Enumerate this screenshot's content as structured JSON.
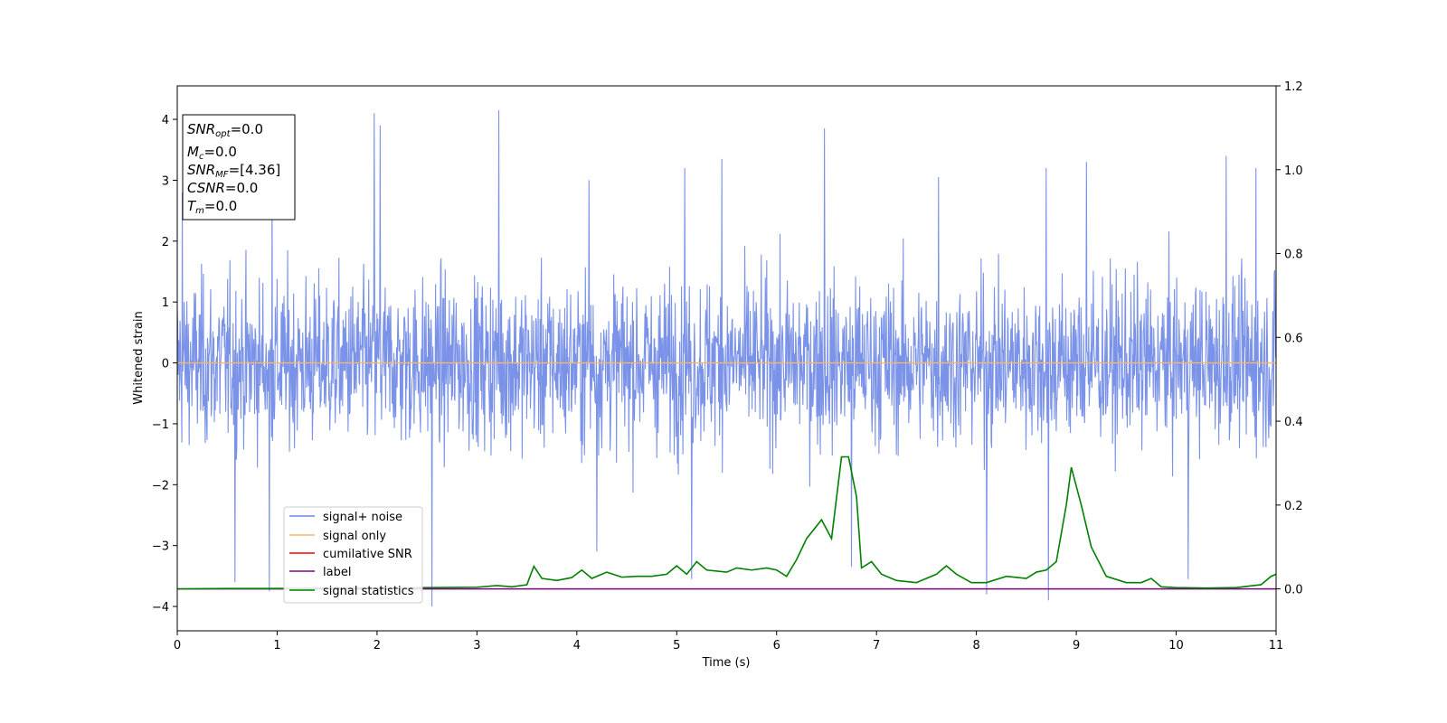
{
  "chart_data": {
    "type": "line",
    "xlabel": "Time (s)",
    "ylabel": "Whitened strain",
    "xlim": [
      0,
      11
    ],
    "ylim": [
      -4.4,
      4.55
    ],
    "y2lim": [
      -0.1,
      1.2
    ],
    "x_ticks": [
      "0",
      "1",
      "2",
      "3",
      "4",
      "5",
      "6",
      "7",
      "8",
      "9",
      "10",
      "11"
    ],
    "y_ticks": [
      "4",
      "3",
      "2",
      "1",
      "0",
      "−1",
      "−2",
      "−3",
      "−4"
    ],
    "y2_ticks": [
      "1.2",
      "1.0",
      "0.8",
      "0.6",
      "0.4",
      "0.2",
      "0.0"
    ],
    "legend_position": "lower-left",
    "info_box": {
      "snr_opt": {
        "main": "SNR",
        "sub": "opt",
        "value": "=0.0"
      },
      "mc": {
        "main": "M",
        "sub": "c",
        "value": "=0.0"
      },
      "snr_mf": {
        "main": "SNR",
        "sub": "MF",
        "value": "=[4.36]"
      },
      "csnr": {
        "main": "CSNR",
        "value": "=0.0"
      },
      "tm": {
        "main": "T",
        "sub": "m",
        "value": "=0.0"
      }
    },
    "series": [
      {
        "name": "signal+ noise",
        "color": "#6b86e5",
        "axis": "left",
        "style": "dense noise, amplitude approx. ±2.5 with spikes to ±4.2",
        "spikes": [
          [
            0.05,
            2.8
          ],
          [
            0.95,
            3.0
          ],
          [
            1.97,
            4.1
          ],
          [
            2.03,
            3.9
          ],
          [
            3.22,
            4.15
          ],
          [
            4.12,
            3.0
          ],
          [
            5.08,
            3.2
          ],
          [
            5.45,
            3.35
          ],
          [
            6.48,
            3.85
          ],
          [
            7.62,
            3.05
          ],
          [
            8.7,
            3.2
          ],
          [
            9.1,
            3.3
          ],
          [
            10.5,
            3.4
          ],
          [
            10.8,
            3.2
          ],
          [
            0.58,
            -3.6
          ],
          [
            0.92,
            -3.75
          ],
          [
            2.55,
            -4.0
          ],
          [
            4.2,
            -3.1
          ],
          [
            5.15,
            -3.55
          ],
          [
            6.75,
            -3.35
          ],
          [
            8.1,
            -3.8
          ],
          [
            8.72,
            -3.9
          ],
          [
            10.12,
            -3.55
          ]
        ]
      },
      {
        "name": "signal only",
        "color": "#f5b86a",
        "axis": "left",
        "points": [
          [
            0,
            0
          ],
          [
            11,
            0
          ]
        ]
      },
      {
        "name": "cumilative SNR",
        "color": "#ff0000",
        "axis": "left",
        "points": []
      },
      {
        "name": "label",
        "color": "#800080",
        "axis": "right",
        "points": [
          [
            0,
            0.0
          ],
          [
            11,
            0.0
          ]
        ]
      },
      {
        "name": "signal statistics",
        "color": "#008000",
        "axis": "right",
        "points": [
          [
            0,
            0.0
          ],
          [
            0.5,
            0.001
          ],
          [
            1,
            0.001
          ],
          [
            1.5,
            0.002
          ],
          [
            2,
            0.002
          ],
          [
            2.5,
            0.003
          ],
          [
            3,
            0.004
          ],
          [
            3.2,
            0.008
          ],
          [
            3.35,
            0.005
          ],
          [
            3.5,
            0.01
          ],
          [
            3.57,
            0.054
          ],
          [
            3.65,
            0.025
          ],
          [
            3.8,
            0.02
          ],
          [
            3.95,
            0.027
          ],
          [
            4.05,
            0.045
          ],
          [
            4.15,
            0.025
          ],
          [
            4.3,
            0.04
          ],
          [
            4.45,
            0.028
          ],
          [
            4.6,
            0.03
          ],
          [
            4.75,
            0.03
          ],
          [
            4.9,
            0.035
          ],
          [
            5.0,
            0.055
          ],
          [
            5.1,
            0.035
          ],
          [
            5.2,
            0.065
          ],
          [
            5.3,
            0.045
          ],
          [
            5.5,
            0.04
          ],
          [
            5.6,
            0.05
          ],
          [
            5.75,
            0.045
          ],
          [
            5.9,
            0.05
          ],
          [
            6.0,
            0.045
          ],
          [
            6.1,
            0.03
          ],
          [
            6.2,
            0.07
          ],
          [
            6.3,
            0.12
          ],
          [
            6.45,
            0.165
          ],
          [
            6.55,
            0.12
          ],
          [
            6.65,
            0.315
          ],
          [
            6.72,
            0.315
          ],
          [
            6.8,
            0.22
          ],
          [
            6.85,
            0.05
          ],
          [
            6.95,
            0.065
          ],
          [
            7.05,
            0.035
          ],
          [
            7.2,
            0.02
          ],
          [
            7.4,
            0.015
          ],
          [
            7.6,
            0.035
          ],
          [
            7.7,
            0.055
          ],
          [
            7.8,
            0.035
          ],
          [
            7.95,
            0.015
          ],
          [
            8.1,
            0.015
          ],
          [
            8.3,
            0.03
          ],
          [
            8.5,
            0.025
          ],
          [
            8.6,
            0.04
          ],
          [
            8.7,
            0.045
          ],
          [
            8.8,
            0.065
          ],
          [
            8.9,
            0.2
          ],
          [
            8.95,
            0.29
          ],
          [
            9.05,
            0.2
          ],
          [
            9.15,
            0.1
          ],
          [
            9.3,
            0.03
          ],
          [
            9.5,
            0.015
          ],
          [
            9.65,
            0.015
          ],
          [
            9.75,
            0.025
          ],
          [
            9.85,
            0.005
          ],
          [
            10.0,
            0.003
          ],
          [
            10.3,
            0.002
          ],
          [
            10.6,
            0.003
          ],
          [
            10.85,
            0.01
          ],
          [
            10.95,
            0.03
          ],
          [
            11,
            0.035
          ]
        ]
      }
    ]
  }
}
